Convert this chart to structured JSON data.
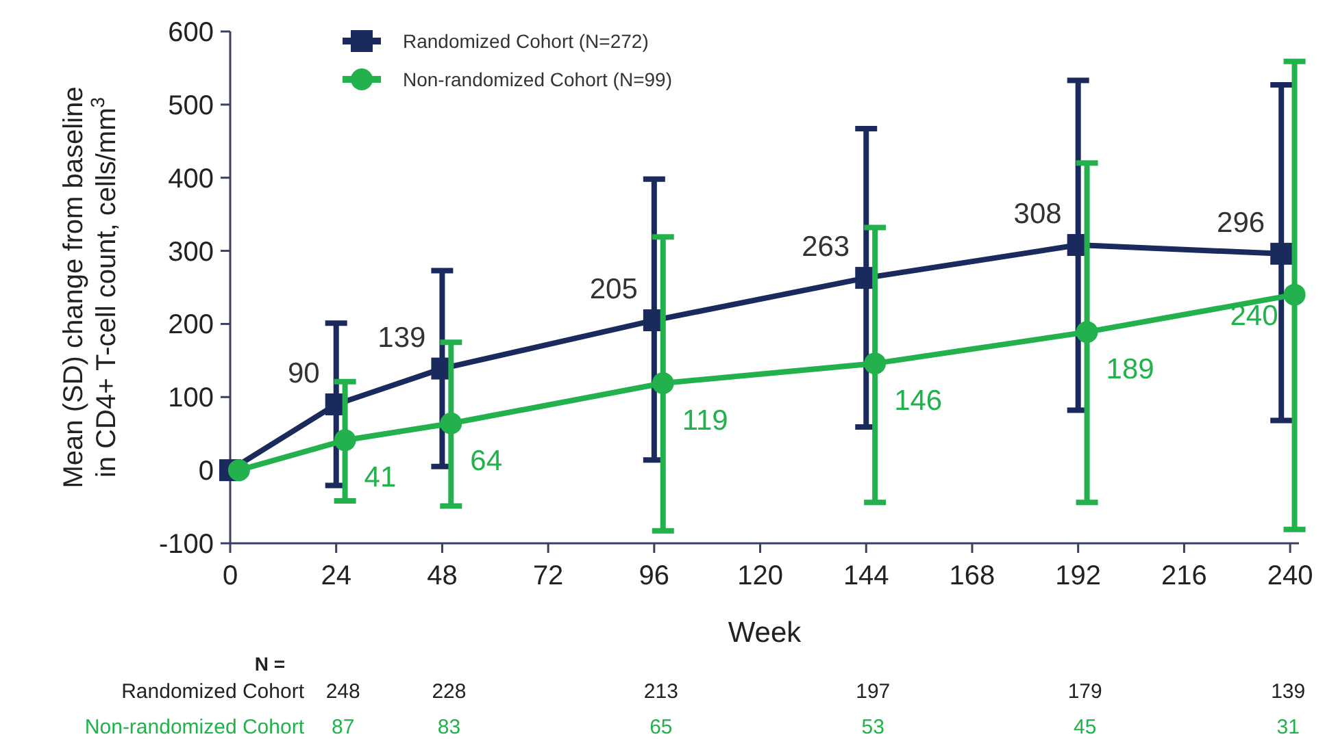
{
  "chart_data": {
    "type": "line",
    "xlabel": "Week",
    "ylabel": "Mean (SD) change from baseline in CD4+ T-cell count, cells/mm$^{3}$",
    "xlim": [
      0,
      242
    ],
    "xticks": [
      0,
      24,
      48,
      72,
      96,
      120,
      144,
      168,
      192,
      216,
      240
    ],
    "ylim": [
      -100,
      600
    ],
    "yticks": [
      -100,
      0,
      100,
      200,
      300,
      400,
      500,
      600
    ],
    "legend": "top left",
    "grid": false,
    "line_style": "solid",
    "series": [
      {
        "name": "Randomized Cohort (N=272)",
        "color": "#1b2a5c",
        "marker": "square",
        "x": [
          0,
          24,
          48,
          96,
          144,
          192,
          238
        ],
        "values": [
          0,
          90,
          139,
          205,
          263,
          308,
          296
        ],
        "errors": [
          null,
          [
            -21,
            201
          ],
          [
            5,
            273
          ],
          [
            14,
            398
          ],
          [
            59,
            467
          ],
          [
            82,
            533
          ],
          [
            68,
            527
          ]
        ],
        "value_labels": [
          null,
          "90",
          "139",
          "205",
          "263",
          "308",
          "296"
        ]
      },
      {
        "name": "Non-randomized Cohort (N=99)",
        "color": "#22b14c",
        "marker": "circle",
        "x": [
          2,
          26,
          50,
          98,
          146,
          194,
          241
        ],
        "values": [
          0,
          41,
          64,
          119,
          146,
          189,
          240
        ],
        "errors": [
          null,
          [
            -42,
            121
          ],
          [
            -49,
            175
          ],
          [
            -83,
            319
          ],
          [
            -44,
            332
          ],
          [
            -44,
            420
          ],
          [
            -81,
            559
          ]
        ],
        "value_labels": [
          null,
          "41",
          "64",
          "119",
          "146",
          "189",
          "240"
        ]
      }
    ],
    "annotations": [
      "N =",
      "Randomized Cohort",
      "Non-randomized Cohort",
      "248",
      "228",
      "213",
      "197",
      "179",
      "139",
      "87",
      "83",
      "65",
      "53",
      "45",
      "31"
    ]
  }
}
